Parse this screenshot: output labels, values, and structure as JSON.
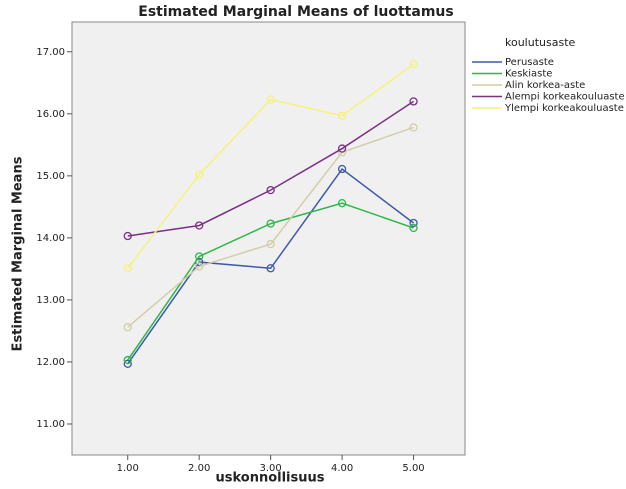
{
  "chart_data": {
    "type": "line",
    "title": "Estimated Marginal Means of luottamus",
    "x_label": "uskonnollisuus",
    "y_label": "Estimated Marginal Means",
    "legend_title": "koulutusaste",
    "x": [
      1,
      2,
      3,
      4,
      5
    ],
    "xlim": [
      0.22,
      5.72
    ],
    "ylim": [
      10.5,
      17.48
    ],
    "xticks": [
      {
        "value": 1,
        "label": "1.00"
      },
      {
        "value": 2,
        "label": "2.00"
      },
      {
        "value": 3,
        "label": "3.00"
      },
      {
        "value": 4,
        "label": "4.00"
      },
      {
        "value": 5,
        "label": "5.00"
      }
    ],
    "yticks": [
      {
        "value": 11,
        "label": "11.00"
      },
      {
        "value": 12,
        "label": "12.00"
      },
      {
        "value": 13,
        "label": "13.00"
      },
      {
        "value": 14,
        "label": "14.00"
      },
      {
        "value": 15,
        "label": "15.00"
      },
      {
        "value": 16,
        "label": "16.00"
      },
      {
        "value": 17,
        "label": "17.00"
      }
    ],
    "grid": false,
    "markers": true,
    "series": [
      {
        "name": "Perusaste",
        "color": "#3e58ac",
        "values": [
          11.97,
          13.61,
          13.51,
          15.11,
          14.24
        ]
      },
      {
        "name": "Keskiaste",
        "color": "#2eb848",
        "values": [
          12.03,
          13.7,
          14.23,
          14.56,
          14.16
        ]
      },
      {
        "name": "Alin korkea-aste",
        "color": "#d3cea6",
        "values": [
          12.56,
          13.54,
          13.9,
          15.38,
          15.78
        ]
      },
      {
        "name": "Alempi korkeakouluaste",
        "color": "#7b2f86",
        "values": [
          14.03,
          14.2,
          14.77,
          15.44,
          16.2
        ]
      },
      {
        "name": "Ylempi korkeakouluaste",
        "color": "#f6f27a",
        "values": [
          13.51,
          15.02,
          16.23,
          15.97,
          16.8
        ]
      }
    ]
  }
}
